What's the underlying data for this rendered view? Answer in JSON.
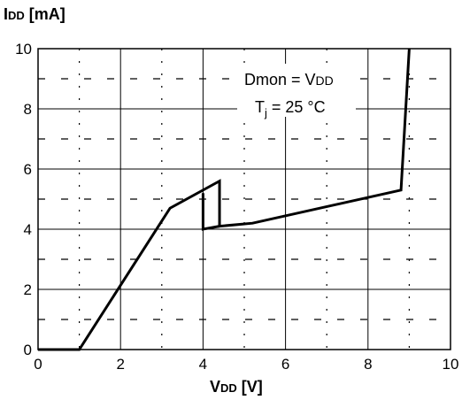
{
  "chart_data": {
    "type": "line",
    "title": "",
    "ylabel": {
      "main": "I",
      "sub": "DD",
      "unit": " [mA]"
    },
    "xlabel": {
      "main": "V",
      "sub": "DD",
      "unit": " [V]"
    },
    "xlim": [
      0,
      10
    ],
    "ylim": [
      0,
      10
    ],
    "x_ticks": [
      "0",
      "2",
      "4",
      "6",
      "8",
      "10"
    ],
    "y_ticks": [
      "0",
      "2",
      "4",
      "6",
      "8",
      "10"
    ],
    "grid": true,
    "annotations": {
      "line1": {
        "left": "Dmon = V",
        "sub": "DD"
      },
      "line2": {
        "left": "T",
        "sub": "j",
        "right": " = 25 °C"
      }
    },
    "series": [
      {
        "values_xy": [
          [
            0,
            0
          ],
          [
            1.0,
            0
          ],
          [
            3.2,
            4.7
          ],
          [
            4.4,
            5.6
          ],
          [
            4.4,
            4.1
          ],
          [
            5.2,
            4.2
          ],
          [
            8.8,
            5.3
          ],
          [
            9.0,
            10
          ]
        ]
      },
      {
        "values_xy": [
          [
            4.0,
            5.2
          ],
          [
            4.0,
            4.0
          ],
          [
            4.4,
            4.1
          ]
        ]
      }
    ],
    "line_color": "#000000"
  }
}
